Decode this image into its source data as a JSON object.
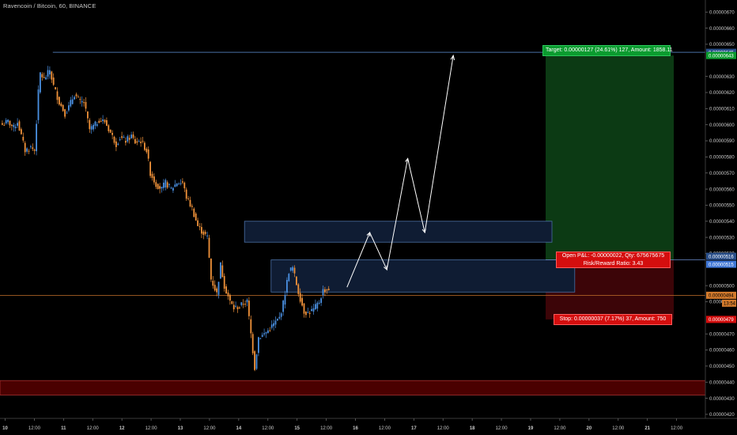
{
  "chart_title": "Ravencoin / Bitcoin, 60, BINANCE",
  "chart_data": {
    "type": "candlestick",
    "symbol": "Ravencoin / Bitcoin",
    "interval": "60",
    "exchange": "BINANCE",
    "ylim": [
      4.175e-06,
      6.775e-06
    ],
    "y_ticks": [
      "0.00000670",
      "0.00000660",
      "0.00000650",
      "0.00000630",
      "0.00000620",
      "0.00000610",
      "0.00000600",
      "0.00000590",
      "0.00000580",
      "0.00000570",
      "0.00000560",
      "0.00000550",
      "0.00000540",
      "0.00000530",
      "0.00000520",
      "0.00000500",
      "0.00000490",
      "0.00000470",
      "0.00000460",
      "0.00000450",
      "0.00000440",
      "0.00000430",
      "0.00000420"
    ],
    "x_ticks": [
      "10",
      "12:00",
      "11",
      "12:00",
      "12",
      "12:00",
      "13",
      "12:00",
      "14",
      "12:00",
      "15",
      "12:00",
      "16",
      "12:00",
      "17",
      "12:00",
      "18",
      "12:00",
      "19",
      "12:00",
      "20",
      "12:00",
      "21",
      "12:00"
    ],
    "close_path": [
      [
        0,
        6e-06
      ],
      [
        3,
        6.02e-06
      ],
      [
        6,
        5.98e-06
      ],
      [
        8,
        6.02e-06
      ],
      [
        12,
        5.84e-06
      ],
      [
        15,
        5.86e-06
      ],
      [
        17,
        5.84e-06
      ],
      [
        19,
        6.2e-06
      ],
      [
        20,
        6.32e-06
      ],
      [
        22,
        6.28e-06
      ],
      [
        25,
        6.34e-06
      ],
      [
        27,
        6.24e-06
      ],
      [
        30,
        6.14e-06
      ],
      [
        33,
        6.07e-06
      ],
      [
        35,
        6.11e-06
      ],
      [
        38,
        6.19e-06
      ],
      [
        41,
        6.14e-06
      ],
      [
        43,
        6.14e-06
      ],
      [
        46,
        5.97e-06
      ],
      [
        49,
        6e-06
      ],
      [
        51,
        6.03e-06
      ],
      [
        54,
        6.02e-06
      ],
      [
        57,
        5.95e-06
      ],
      [
        60,
        5.88e-06
      ],
      [
        62,
        5.92e-06
      ],
      [
        65,
        5.9e-06
      ],
      [
        68,
        5.93e-06
      ],
      [
        70,
        5.89e-06
      ],
      [
        73,
        5.9e-06
      ],
      [
        76,
        5.84e-06
      ],
      [
        78,
        5.7e-06
      ],
      [
        81,
        5.63e-06
      ],
      [
        84,
        5.6e-06
      ],
      [
        86,
        5.64e-06
      ],
      [
        89,
        5.6e-06
      ],
      [
        92,
        5.64e-06
      ],
      [
        95,
        5.64e-06
      ],
      [
        97,
        5.55e-06
      ],
      [
        100,
        5.48e-06
      ],
      [
        103,
        5.37e-06
      ],
      [
        105,
        5.34e-06
      ],
      [
        108,
        5.3e-06
      ],
      [
        110,
        5.04e-06
      ],
      [
        113,
        4.95e-06
      ],
      [
        115,
        5.13e-06
      ],
      [
        117,
        5e-06
      ],
      [
        120,
        4.9e-06
      ],
      [
        122,
        4.86e-06
      ],
      [
        125,
        4.87e-06
      ],
      [
        127,
        4.89e-06
      ],
      [
        129,
        4.9e-06
      ],
      [
        131,
        4.7e-06
      ],
      [
        133,
        4.49e-06
      ],
      [
        135,
        4.68e-06
      ],
      [
        137,
        4.69e-06
      ],
      [
        140,
        4.72e-06
      ],
      [
        143,
        4.76e-06
      ],
      [
        146,
        4.8e-06
      ],
      [
        148,
        4.89e-06
      ],
      [
        151,
        5.09e-06
      ],
      [
        153,
        5.11e-06
      ],
      [
        156,
        4.96e-06
      ],
      [
        159,
        4.84e-06
      ],
      [
        161,
        4.83e-06
      ],
      [
        164,
        4.85e-06
      ],
      [
        167,
        4.9e-06
      ],
      [
        169,
        4.97e-06
      ],
      [
        172,
        4.98e-06
      ]
    ],
    "up_color": "#4a90e2",
    "down_color": "#f0923a",
    "high_level": 6.45e-06,
    "entry_level": 5.16e-06,
    "current_price": 4.94e-06,
    "support_zone": [
      4.32e-06,
      4.41e-06
    ],
    "demand_zones": [
      {
        "start_bar": 128,
        "end_bar": 290,
        "top": 5.4e-06,
        "bottom": 5.27e-06
      },
      {
        "start_bar": 142,
        "end_bar": 302,
        "top": 5.16e-06,
        "bottom": 4.96e-06
      }
    ],
    "projection_path": [
      [
        182,
        4.99e-06
      ],
      [
        194,
        5.33e-06
      ],
      [
        203,
        5.1e-06
      ],
      [
        214,
        5.79e-06
      ],
      [
        223,
        5.33e-06
      ],
      [
        238,
        6.43e-06
      ]
    ],
    "long_position": {
      "target_price": 6.43e-06,
      "entry_price": 5.16e-06,
      "stop_price": 4.79e-06,
      "target_label": "Target: 0.00000127 (24.61%) 127, Amount: 1858.11",
      "pnl_label": "Open P&L: -0.00000022, Qty: 675675675",
      "ratio_label": "Risk/Reward Ratio: 3.43",
      "stop_label": "Stop: 0.00000037 (7.17%) 37, Amount: 750"
    },
    "price_labels": {
      "high": "0.00000645",
      "target": "0.00000643",
      "entry": "0.00000516",
      "blue_level": "0.00000515",
      "current": "0.00000494",
      "countdown": "13:54",
      "stop": "0.00000479"
    }
  }
}
